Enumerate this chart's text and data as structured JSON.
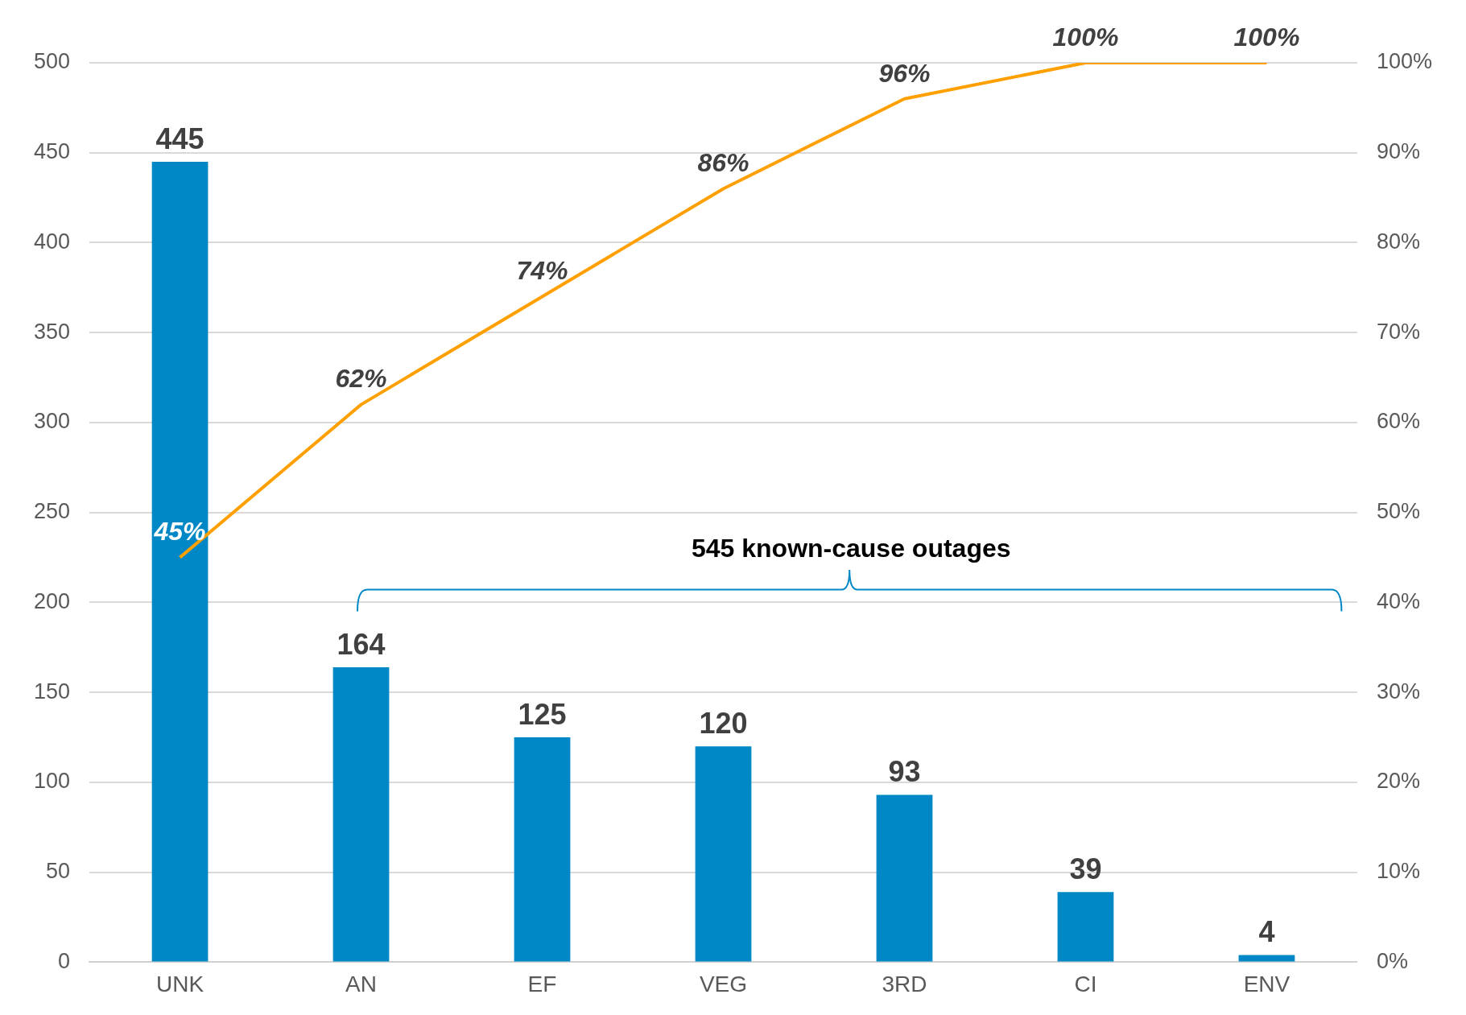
{
  "chart_data": {
    "type": "bar",
    "categories": [
      "UNK",
      "AN",
      "EF",
      "VEG",
      "3RD",
      "CI",
      "ENV"
    ],
    "series": [
      {
        "color": "#0088c6",
        "values": [
          445,
          164,
          125,
          120,
          93,
          39,
          4
        ]
      },
      {
        "type": "line",
        "axis": "y2",
        "color": "#ffa000",
        "values": [
          45,
          62,
          74,
          86,
          96,
          100,
          100
        ],
        "value_labels": [
          "45%",
          "62%",
          "74%",
          "86%",
          "96%",
          "100%",
          "100%"
        ]
      }
    ],
    "data_labels": true,
    "marker": "none",
    "grid": "y",
    "legend": false,
    "ylim": [
      0,
      500
    ],
    "yticks": [
      0,
      50,
      100,
      150,
      200,
      250,
      300,
      350,
      400,
      450,
      500
    ],
    "y2lim": [
      0,
      100
    ],
    "y2ticks": [
      {
        "value": 0,
        "label": "0%"
      },
      {
        "value": 10,
        "label": "10%"
      },
      {
        "value": 20,
        "label": "20%"
      },
      {
        "value": 30,
        "label": "30%"
      },
      {
        "value": 40,
        "label": "40%"
      },
      {
        "value": 50,
        "label": "50%"
      },
      {
        "value": 60,
        "label": "60%"
      },
      {
        "value": 70,
        "label": "70%"
      },
      {
        "value": 80,
        "label": "80%"
      },
      {
        "value": 90,
        "label": "90%"
      },
      {
        "value": 100,
        "label": "100%"
      }
    ],
    "annotations": [
      "545 known-cause outages"
    ]
  }
}
